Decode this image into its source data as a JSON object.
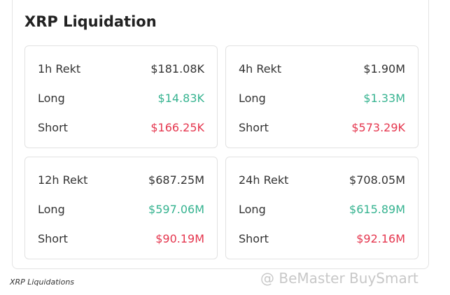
{
  "title": "XRP Liquidation",
  "panels": [
    {
      "rows": [
        {
          "label": "1h Rekt",
          "value": "$181.08K"
        },
        {
          "label": "Long",
          "value": "$14.83K"
        },
        {
          "label": "Short",
          "value": "$166.25K"
        }
      ]
    },
    {
      "rows": [
        {
          "label": "4h Rekt",
          "value": "$1.90M"
        },
        {
          "label": "Long",
          "value": "$1.33M"
        },
        {
          "label": "Short",
          "value": "$573.29K"
        }
      ]
    },
    {
      "rows": [
        {
          "label": "12h Rekt",
          "value": "$687.25M"
        },
        {
          "label": "Long",
          "value": "$597.06M"
        },
        {
          "label": "Short",
          "value": "$90.19M"
        }
      ]
    },
    {
      "rows": [
        {
          "label": "24h Rekt",
          "value": "$708.05M"
        },
        {
          "label": "Long",
          "value": "$615.89M"
        },
        {
          "label": "Short",
          "value": "$92.16M"
        }
      ]
    }
  ],
  "caption": "XRP Liquidations",
  "watermark": "@ BeMaster BuySmart"
}
